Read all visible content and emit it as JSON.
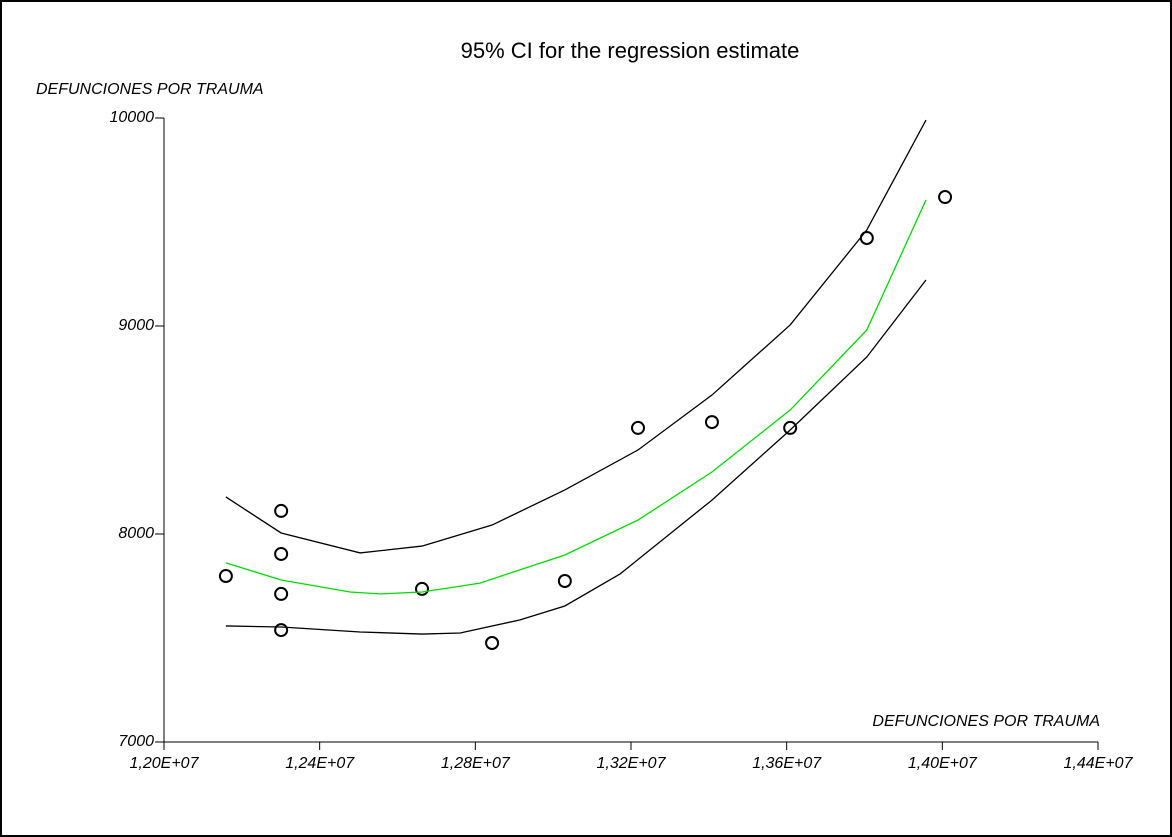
{
  "chart_data": {
    "type": "scatter",
    "title": "95% CI for the regression estimate",
    "x_label": "DEFUNCIONES POR TRAUMA",
    "y_label": "DEFUNCIONES POR TRAUMA",
    "xlim": [
      12000000,
      14400000
    ],
    "ylim": [
      7000,
      10000
    ],
    "xticks": [
      {
        "value": 12000000,
        "label": "1,20E+07"
      },
      {
        "value": 12400000,
        "label": "1,24E+07"
      },
      {
        "value": 12800000,
        "label": "1,28E+07"
      },
      {
        "value": 13200000,
        "label": "1,32E+07"
      },
      {
        "value": 13600000,
        "label": "1,36E+07"
      },
      {
        "value": 14000000,
        "label": "1,40E+07"
      },
      {
        "value": 14400000,
        "label": "1,44E+07"
      }
    ],
    "yticks": [
      7000,
      8000,
      9000,
      10000
    ],
    "series": [
      {
        "kind": "markers",
        "color": "#000000",
        "x": [
          12159000,
          12301000,
          12301000,
          12301000,
          12301000,
          12663000,
          12843000,
          13030000,
          13218000,
          13408000,
          13609000,
          13806000,
          14007000
        ],
        "values": [
          7798,
          8111,
          7904,
          7712,
          7538,
          7736,
          7476,
          7774,
          8510,
          8538,
          8510,
          9423,
          9620
        ]
      },
      {
        "kind": "line",
        "color": "#00dd00",
        "x": [
          12159000,
          12301000,
          12478000,
          12555000,
          12663000,
          12812000,
          13030000,
          13218000,
          13408000,
          13609000,
          13806000,
          13958000
        ],
        "values": [
          7861,
          7779,
          7721,
          7712,
          7721,
          7764,
          7899,
          8067,
          8298,
          8596,
          8981,
          9606
        ]
      },
      {
        "kind": "line",
        "color": "#000000",
        "x": [
          12159000,
          12301000,
          12504000,
          12663000,
          12843000,
          13030000,
          13218000,
          13408000,
          13609000,
          13806000,
          13958000
        ],
        "values": [
          8178,
          8005,
          7909,
          7942,
          8043,
          8212,
          8404,
          8668,
          9005,
          9462,
          9990
        ]
      },
      {
        "kind": "line",
        "color": "#000000",
        "x": [
          12159000,
          12301000,
          12504000,
          12663000,
          12761000,
          12915000,
          13030000,
          13172000,
          13408000,
          13609000,
          13806000,
          13958000
        ],
        "values": [
          7558,
          7553,
          7529,
          7519,
          7524,
          7587,
          7654,
          7808,
          8163,
          8500,
          8851,
          9221
        ]
      }
    ]
  }
}
